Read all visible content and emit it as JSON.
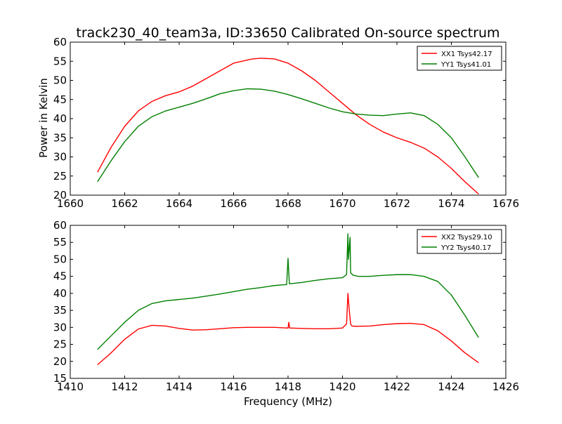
{
  "figure": {
    "title": "track230_40_team3a, ID:33650 Calibrated On-source spectrum",
    "ylabel": "Power in Kelvin",
    "xlabel": "Frequency (MHz)"
  },
  "chart_data": [
    {
      "type": "line",
      "title": "track230_40_team3a, ID:33650 Calibrated On-source spectrum",
      "xlabel": "",
      "ylabel": "Power in Kelvin",
      "xlim": [
        1660,
        1676
      ],
      "ylim": [
        20,
        60
      ],
      "xticks": [
        1660,
        1662,
        1664,
        1666,
        1668,
        1670,
        1672,
        1674,
        1676
      ],
      "yticks": [
        20,
        25,
        30,
        35,
        40,
        45,
        50,
        55,
        60
      ],
      "legend_position": "top-right",
      "grid": false,
      "series": [
        {
          "name": "XX1 Tsys42.17",
          "color": "#ff0000",
          "x": [
            1661.0,
            1661.5,
            1662.0,
            1662.5,
            1663.0,
            1663.5,
            1664.0,
            1664.5,
            1665.0,
            1665.5,
            1666.0,
            1666.5,
            1666.7,
            1667.0,
            1667.5,
            1668.0,
            1668.5,
            1669.0,
            1669.5,
            1670.0,
            1670.5,
            1671.0,
            1671.5,
            1672.0,
            1672.5,
            1673.0,
            1673.5,
            1674.0,
            1674.5,
            1675.0
          ],
          "y": [
            26.0,
            32.5,
            38.0,
            42.0,
            44.5,
            46.0,
            47.0,
            48.5,
            50.5,
            52.5,
            54.5,
            55.3,
            55.6,
            55.8,
            55.6,
            54.5,
            52.5,
            50.0,
            47.0,
            44.0,
            41.0,
            38.5,
            36.5,
            35.0,
            33.8,
            32.3,
            30.0,
            27.0,
            23.5,
            20.3
          ]
        },
        {
          "name": "YY1 Tsys41.01",
          "color": "#008000",
          "x": [
            1661.0,
            1661.5,
            1662.0,
            1662.5,
            1663.0,
            1663.5,
            1664.0,
            1664.5,
            1665.0,
            1665.5,
            1666.0,
            1666.5,
            1667.0,
            1667.5,
            1668.0,
            1668.5,
            1669.0,
            1669.5,
            1670.0,
            1670.5,
            1671.0,
            1671.5,
            1672.0,
            1672.5,
            1673.0,
            1673.5,
            1674.0,
            1674.5,
            1675.0
          ],
          "y": [
            23.5,
            29.0,
            34.0,
            38.0,
            40.5,
            42.0,
            43.0,
            44.0,
            45.2,
            46.5,
            47.3,
            47.8,
            47.7,
            47.2,
            46.3,
            45.2,
            44.0,
            42.8,
            41.8,
            41.2,
            40.9,
            40.8,
            41.2,
            41.5,
            40.8,
            38.5,
            35.0,
            30.0,
            24.6
          ]
        }
      ]
    },
    {
      "type": "line",
      "title": "",
      "xlabel": "Frequency (MHz)",
      "ylabel": "",
      "xlim": [
        1410,
        1426
      ],
      "ylim": [
        15,
        60
      ],
      "xticks": [
        1410,
        1412,
        1414,
        1416,
        1418,
        1420,
        1422,
        1424,
        1426
      ],
      "yticks": [
        15,
        20,
        25,
        30,
        35,
        40,
        45,
        50,
        55,
        60
      ],
      "legend_position": "top-right",
      "grid": false,
      "series": [
        {
          "name": "XX2 Tsys29.10",
          "color": "#ff0000",
          "x": [
            1411.0,
            1411.5,
            1412.0,
            1412.5,
            1413.0,
            1413.5,
            1414.0,
            1414.5,
            1415.0,
            1415.5,
            1416.0,
            1416.5,
            1417.0,
            1417.5,
            1418.0,
            1418.03,
            1418.06,
            1418.1,
            1418.5,
            1419.0,
            1419.5,
            1420.0,
            1420.15,
            1420.2,
            1420.25,
            1420.3,
            1420.35,
            1420.5,
            1421.0,
            1421.5,
            1422.0,
            1422.5,
            1423.0,
            1423.5,
            1424.0,
            1424.5,
            1425.0
          ],
          "y": [
            19.0,
            22.5,
            26.5,
            29.5,
            30.6,
            30.4,
            29.7,
            29.2,
            29.3,
            29.6,
            29.9,
            30.0,
            30.0,
            30.0,
            29.8,
            31.5,
            29.8,
            29.8,
            29.7,
            29.6,
            29.6,
            29.8,
            31.0,
            40.0,
            35.0,
            31.0,
            30.4,
            30.3,
            30.4,
            30.8,
            31.1,
            31.2,
            30.8,
            29.0,
            26.0,
            22.5,
            19.6
          ]
        },
        {
          "name": "YY2 Tsys40.17",
          "color": "#008000",
          "x": [
            1411.0,
            1411.5,
            1412.0,
            1412.5,
            1413.0,
            1413.5,
            1414.0,
            1414.5,
            1415.0,
            1415.5,
            1416.0,
            1416.5,
            1417.0,
            1417.5,
            1417.95,
            1418.0,
            1418.05,
            1418.5,
            1419.0,
            1419.5,
            1420.0,
            1420.15,
            1420.2,
            1420.22,
            1420.28,
            1420.3,
            1420.4,
            1420.6,
            1421.0,
            1421.5,
            1422.0,
            1422.5,
            1423.0,
            1423.5,
            1424.0,
            1424.5,
            1425.0
          ],
          "y": [
            23.5,
            27.5,
            31.5,
            35.0,
            37.0,
            37.8,
            38.2,
            38.6,
            39.2,
            39.8,
            40.5,
            41.2,
            41.7,
            42.3,
            42.6,
            50.3,
            42.8,
            43.2,
            43.8,
            44.3,
            44.6,
            45.5,
            57.5,
            50.0,
            56.5,
            46.0,
            45.3,
            45.0,
            45.0,
            45.3,
            45.5,
            45.5,
            45.0,
            43.5,
            39.5,
            33.5,
            27.0
          ]
        }
      ]
    }
  ]
}
